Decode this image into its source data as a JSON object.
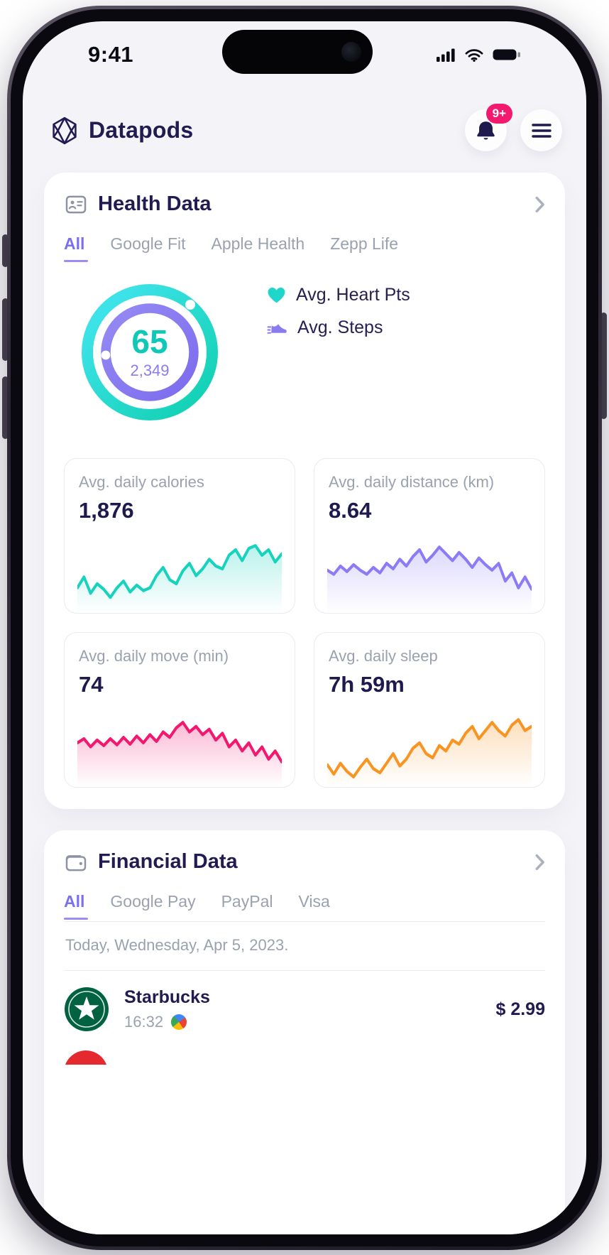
{
  "status_bar": {
    "time": "9:41"
  },
  "header": {
    "app_name": "Datapods",
    "notifications_badge": "9+"
  },
  "health_card": {
    "title": "Health Data",
    "tabs": {
      "all": "All",
      "google_fit": "Google Fit",
      "apple_health": "Apple Health",
      "zepp_life": "Zepp Life"
    },
    "summary": {
      "heart_pts": "65",
      "steps": "2,349"
    },
    "legend": {
      "heart": "Avg. Heart Pts",
      "steps": "Avg. Steps"
    },
    "metrics": [
      {
        "label": "Avg. daily calories",
        "value": "1,876"
      },
      {
        "label": "Avg. daily distance (km)",
        "value": "8.64"
      },
      {
        "label": "Avg. daily move (min)",
        "value": "74"
      },
      {
        "label": "Avg. daily sleep",
        "value": "7h 59m"
      }
    ]
  },
  "financial_card": {
    "title": "Financial Data",
    "tabs": {
      "all": "All",
      "google_pay": "Google Pay",
      "paypal": "PayPal",
      "visa": "Visa"
    },
    "date_header": "Today, Wednesday, Apr 5, 2023.",
    "transactions": [
      {
        "merchant": "Starbucks",
        "time": "16:32",
        "amount": "$ 2.99"
      }
    ]
  },
  "chart_data": [
    {
      "type": "pie",
      "variant": "double-ring-donut",
      "series": [
        {
          "name": "Avg. Heart Pts",
          "value": 65,
          "color": "#17d1c1",
          "ring": "outer"
        },
        {
          "name": "Avg. Steps",
          "value": 2349,
          "color": "#8a7bf0",
          "ring": "inner"
        }
      ]
    },
    {
      "type": "line",
      "title": "Avg. daily calories",
      "latest": 1876,
      "color": "#17d3be",
      "values": [
        30,
        46,
        22,
        36,
        28,
        16,
        30,
        40,
        24,
        34,
        26,
        30,
        48,
        60,
        42,
        36,
        55,
        66,
        48,
        58,
        72,
        62,
        58,
        78,
        86,
        70,
        88,
        92,
        78,
        86,
        68,
        80
      ]
    },
    {
      "type": "line",
      "title": "Avg. daily distance (km)",
      "latest": 8.64,
      "color": "#8b7cf6",
      "values": [
        56,
        50,
        62,
        54,
        64,
        56,
        50,
        60,
        52,
        66,
        58,
        72,
        62,
        76,
        86,
        68,
        78,
        90,
        80,
        70,
        82,
        72,
        60,
        74,
        64,
        56,
        66,
        40,
        52,
        30,
        46,
        28
      ]
    },
    {
      "type": "line",
      "title": "Avg. daily move (min)",
      "latest": 74,
      "color": "#f2186f",
      "values": [
        58,
        64,
        52,
        62,
        54,
        64,
        55,
        66,
        56,
        68,
        58,
        70,
        60,
        74,
        66,
        80,
        88,
        74,
        82,
        70,
        78,
        62,
        72,
        52,
        62,
        46,
        58,
        40,
        52,
        34,
        46,
        30
      ]
    },
    {
      "type": "line",
      "title": "Avg. daily sleep",
      "latest": "7h 59m",
      "color": "#f79422",
      "values": [
        26,
        12,
        28,
        16,
        8,
        22,
        34,
        20,
        14,
        28,
        42,
        24,
        34,
        50,
        58,
        42,
        36,
        54,
        46,
        62,
        56,
        72,
        82,
        64,
        76,
        88,
        76,
        68,
        84,
        92,
        76,
        82
      ]
    }
  ]
}
